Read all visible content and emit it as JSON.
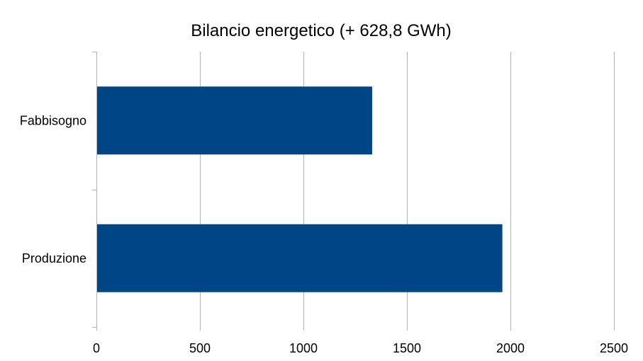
{
  "chart_data": {
    "type": "bar",
    "orientation": "horizontal",
    "title": "Bilancio energetico (+ 628,8 GWh)",
    "categories": [
      "Fabbisogno",
      "Produzione"
    ],
    "values": [
      1332,
      1961
    ],
    "xlim": [
      0,
      2500
    ],
    "xticks": [
      0,
      500,
      1000,
      1500,
      2000,
      2500
    ],
    "xticks_labels": [
      "0",
      "500",
      "1000",
      "1500",
      "2000",
      "2500"
    ],
    "xlabel": "",
    "ylabel": "",
    "grid": true,
    "legend": "none",
    "bar_color": "#004586"
  }
}
